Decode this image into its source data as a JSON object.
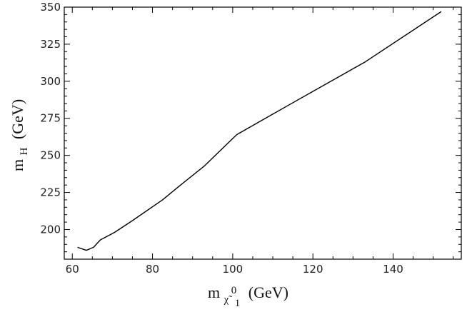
{
  "chart_data": {
    "type": "line",
    "title": "",
    "xlabel": {
      "main": "m",
      "sub_symbol": "χ̃",
      "sub_index": "1",
      "sup": "0",
      "unit": "(GeV)"
    },
    "ylabel": {
      "main": "m",
      "sub": "H",
      "unit": "(GeV)"
    },
    "xlim": [
      58,
      157
    ],
    "ylim": [
      180,
      350
    ],
    "xticks": [
      60,
      80,
      100,
      120,
      140
    ],
    "yticks": [
      200,
      225,
      250,
      275,
      300,
      325,
      350
    ],
    "grid": false,
    "series": [
      {
        "x": [
          61.3,
          63.5,
          65.3,
          67.0,
          70.5,
          75.0,
          82.5,
          87.0,
          93.0,
          101.0,
          114.0,
          133.0,
          152.0
        ],
        "y": [
          188.0,
          186.0,
          188.0,
          193.0,
          198.0,
          206.0,
          220.0,
          230.0,
          243.0,
          264.0,
          284.0,
          313.0,
          347.0
        ]
      }
    ]
  }
}
